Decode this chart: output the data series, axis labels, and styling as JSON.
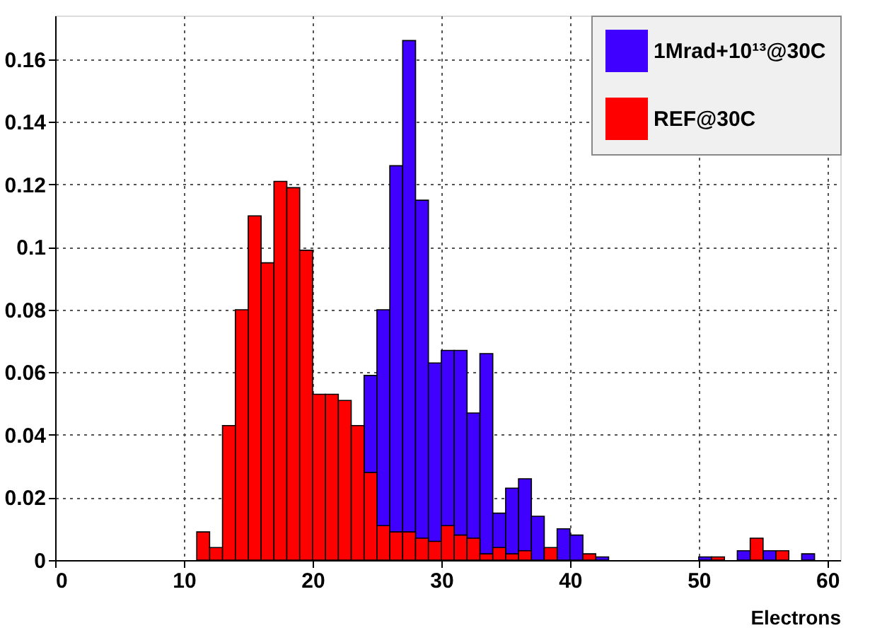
{
  "chart_data": {
    "type": "histogram",
    "xlabel": "Electrons",
    "bins": [
      11,
      12,
      13,
      14,
      15,
      16,
      17,
      18,
      19,
      20,
      21,
      22,
      23,
      24,
      25,
      26,
      27,
      28,
      29,
      30,
      31,
      32,
      33,
      34,
      35,
      36,
      37,
      38,
      39,
      40,
      41,
      42,
      43,
      44,
      45,
      46,
      47,
      48,
      49,
      50,
      51,
      52,
      53,
      54,
      55,
      56,
      57,
      58,
      59,
      60
    ],
    "series": [
      {
        "name": "1Mrad+10¹³@30C",
        "color": "#4000ff",
        "values": [
          null,
          null,
          null,
          null,
          null,
          null,
          null,
          null,
          null,
          null,
          null,
          null,
          null,
          0.059,
          0.08,
          0.126,
          0.166,
          0.115,
          0.063,
          0.067,
          0.067,
          0.047,
          0.066,
          0.015,
          0.023,
          0.026,
          0.014,
          null,
          0.01,
          0.008,
          null,
          0.001,
          0,
          0,
          0,
          0,
          0,
          0,
          0,
          0.001,
          null,
          0,
          0.003,
          null,
          0.003,
          null,
          0,
          0.002,
          0
        ]
      },
      {
        "name": "REF@30C",
        "color": "#ff0000",
        "values": [
          0.009,
          0.004,
          0.043,
          0.08,
          0.11,
          0.095,
          0.121,
          0.119,
          0.099,
          0.053,
          0.053,
          0.051,
          0.043,
          0.028,
          0.011,
          0.009,
          0.009,
          0.007,
          0.006,
          0.011,
          0.008,
          0.007,
          0.002,
          0.004,
          0.002,
          0.003,
          0,
          0.004,
          0,
          0,
          0.002,
          0,
          0,
          0,
          0,
          0,
          0,
          0,
          0,
          0,
          0.001,
          0,
          0,
          0.007,
          0,
          0.003,
          0,
          0,
          0
        ]
      }
    ],
    "xlim": [
      0,
      61
    ],
    "ylim": [
      0,
      0.174
    ],
    "xticks": [
      0,
      10,
      20,
      30,
      40,
      50,
      60
    ],
    "yticks": [
      0,
      0.02,
      0.04,
      0.06,
      0.08,
      0.1,
      0.12,
      0.14,
      0.16
    ],
    "grid": true,
    "legend": "top right"
  }
}
